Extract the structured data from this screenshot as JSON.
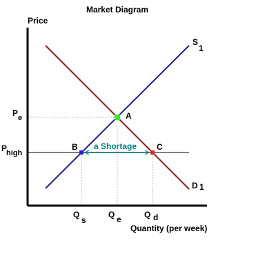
{
  "title": "Market Diagram",
  "axes": {
    "y_label": "Price",
    "x_label": "Quantity (per week)"
  },
  "curves": {
    "supply": {
      "label": "S",
      "subscript": "1",
      "color": "#1f1f8f"
    },
    "demand": {
      "label": "D",
      "subscript": "1",
      "color": "#8b1a1a"
    }
  },
  "price_levels": {
    "equilibrium": {
      "label": "P",
      "subscript": "e"
    },
    "ceiling": {
      "label": "P",
      "subscript": "high"
    }
  },
  "quantity_levels": {
    "supplied": {
      "label": "Q",
      "subscript": "s"
    },
    "equilibrium": {
      "label": "Q",
      "subscript": "e"
    },
    "demanded": {
      "label": "Q",
      "subscript": "d"
    }
  },
  "points": {
    "equilibrium": {
      "label": "A",
      "color": "#33ee33"
    },
    "supplied_at_ceiling": {
      "label": "B",
      "color": "#2222cc"
    },
    "demanded_at_ceiling": {
      "label": "C",
      "color": "#dd2222"
    }
  },
  "annotation": {
    "text": "a Shortage",
    "color": "#008080"
  },
  "colors": {
    "axis": "#000000",
    "price_line": "#555555",
    "guide": "#bbbbbb"
  }
}
